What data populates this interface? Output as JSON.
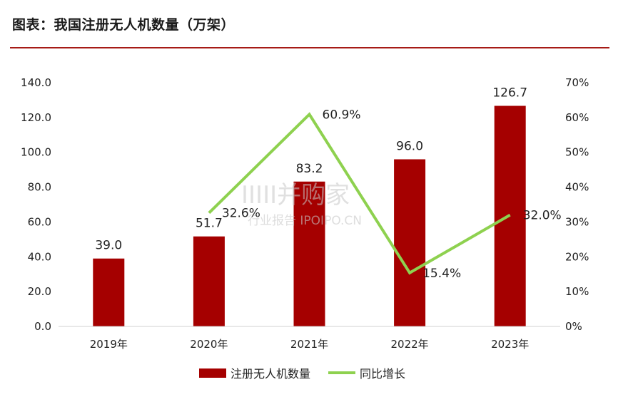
{
  "title": "图表：我国注册无人机数量（万架）",
  "watermark": {
    "line1": "IIIII并购家",
    "line2": "行业报告 IPOIPO.CN"
  },
  "colors": {
    "bar": "#a50000",
    "line": "#8ed14f",
    "rule": "#a61b16"
  },
  "chart_data": {
    "type": "bar",
    "categories": [
      "2019年",
      "2020年",
      "2021年",
      "2022年",
      "2023年"
    ],
    "series": [
      {
        "name": "注册无人机数量",
        "type": "bar",
        "axis": "left",
        "values": [
          39.0,
          51.7,
          83.2,
          96.0,
          126.7
        ],
        "labels": [
          "39.0",
          "51.7",
          "83.2",
          "96.0",
          "126.7"
        ]
      },
      {
        "name": "同比增长",
        "type": "line",
        "axis": "right",
        "values": [
          null,
          32.6,
          60.9,
          15.4,
          32.0
        ],
        "labels": [
          "",
          "32.6%",
          "60.9%",
          "15.4%",
          "32.0%"
        ]
      }
    ],
    "y_left": {
      "min": 0,
      "max": 140,
      "step": 20,
      "ticks": [
        "0.0",
        "20.0",
        "40.0",
        "60.0",
        "80.0",
        "100.0",
        "120.0",
        "140.0"
      ]
    },
    "y_right": {
      "min": 0,
      "max": 70,
      "step": 10,
      "ticks": [
        "0%",
        "10%",
        "20%",
        "30%",
        "40%",
        "50%",
        "60%",
        "70%"
      ]
    },
    "grid": false,
    "legend_position": "bottom"
  }
}
